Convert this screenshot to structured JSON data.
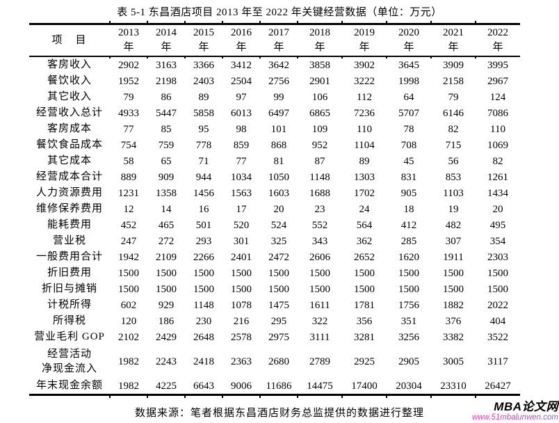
{
  "title": "表 5-1 东昌酒店项目 2013 年至 2022 年关键经营数据（单位：万元）",
  "table": {
    "item_header": "项　目",
    "year_suffix": "年",
    "years": [
      "2013",
      "2014",
      "2015",
      "2016",
      "2017",
      "2018",
      "2019",
      "2020",
      "2021",
      "2022"
    ],
    "rows": [
      {
        "label": "客房收入",
        "values": [
          2902,
          3163,
          3366,
          3412,
          3642,
          3858,
          3902,
          3645,
          3909,
          3995
        ]
      },
      {
        "label": "餐饮收入",
        "values": [
          1952,
          2198,
          2403,
          2504,
          2756,
          2901,
          3222,
          1998,
          2158,
          2967
        ]
      },
      {
        "label": "其它收入",
        "values": [
          79,
          86,
          89,
          97,
          99,
          106,
          112,
          64,
          79,
          124
        ]
      },
      {
        "label": "经营收入总计",
        "values": [
          4933,
          5447,
          5858,
          6013,
          6497,
          6865,
          7236,
          5707,
          6146,
          7086
        ]
      },
      {
        "label": "客房成本",
        "values": [
          77,
          85,
          95,
          98,
          101,
          109,
          110,
          78,
          82,
          110
        ]
      },
      {
        "label": "餐饮食品成本",
        "values": [
          754,
          759,
          778,
          859,
          868,
          952,
          1104,
          708,
          715,
          1069
        ]
      },
      {
        "label": "其它成本",
        "values": [
          58,
          65,
          71,
          77,
          81,
          87,
          89,
          45,
          56,
          82
        ]
      },
      {
        "label": "经营成本合计",
        "values": [
          889,
          909,
          944,
          1034,
          1050,
          1148,
          1303,
          831,
          853,
          1261
        ]
      },
      {
        "label": "人力资源费用",
        "values": [
          1231,
          1358,
          1456,
          1563,
          1603,
          1688,
          1702,
          905,
          1103,
          1434
        ]
      },
      {
        "label": "维修保养费用",
        "values": [
          12,
          14,
          16,
          17,
          20,
          23,
          24,
          18,
          19,
          20
        ]
      },
      {
        "label": "能耗费用",
        "values": [
          452,
          465,
          501,
          520,
          524,
          552,
          564,
          412,
          482,
          495
        ]
      },
      {
        "label": "营业税",
        "values": [
          247,
          272,
          293,
          301,
          325,
          343,
          362,
          285,
          307,
          354
        ]
      },
      {
        "label": "一般费用合计",
        "values": [
          1942,
          2109,
          2266,
          2401,
          2472,
          2606,
          2652,
          1620,
          1911,
          2303
        ]
      },
      {
        "label": "折旧费用",
        "values": [
          1500,
          1500,
          1500,
          1500,
          1500,
          1500,
          1500,
          1500,
          1500,
          1500
        ]
      },
      {
        "label": "折旧与摊销",
        "values": [
          1500,
          1500,
          1500,
          1500,
          1500,
          1500,
          1500,
          1500,
          1500,
          1500
        ]
      },
      {
        "label": "计税所得",
        "values": [
          602,
          929,
          1148,
          1078,
          1475,
          1611,
          1781,
          1756,
          1882,
          2022
        ]
      },
      {
        "label": "所得税",
        "values": [
          120,
          186,
          230,
          216,
          295,
          322,
          356,
          351,
          376,
          404
        ]
      },
      {
        "label": "营业毛利 GOP",
        "values": [
          2102,
          2429,
          2648,
          2578,
          2975,
          3111,
          3281,
          3256,
          3382,
          3522
        ]
      },
      {
        "label": "经营活动\n净现金流入",
        "values": [
          1982,
          2243,
          2418,
          2363,
          2680,
          2789,
          2925,
          2905,
          3005,
          3117
        ]
      },
      {
        "label": "年末现金余额",
        "values": [
          1982,
          4225,
          6643,
          9006,
          11686,
          14475,
          17400,
          20304,
          23310,
          26427
        ]
      }
    ]
  },
  "source_note": "数据来源：笔者根据东昌酒店财务总监提供的数据进行整理",
  "watermark": {
    "name": "MBA论文网",
    "url": "www.51mbalunwen.com",
    "url_color_start": "#ea3aa2",
    "url_color_end": "#7a68cf"
  },
  "colors": {
    "text": "#000000",
    "background": "#ffffff",
    "table_rule": "#000000"
  }
}
